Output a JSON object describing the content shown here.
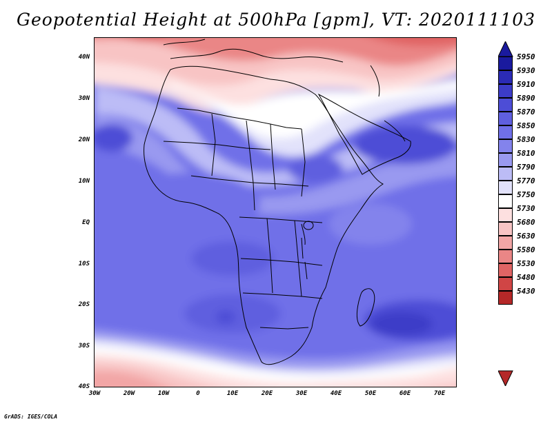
{
  "title": "Geopotential Height at 500hPa [gpm], VT: 2020111103",
  "credit": "GrADS: IGES/COLA",
  "map": {
    "variable": "Geopotential Height",
    "level": "500hPa",
    "units": "gpm",
    "valid_time": "2020111103",
    "lat_labels": [
      "40N",
      "30N",
      "20N",
      "10N",
      "EQ",
      "10S",
      "20S",
      "30S",
      "40S"
    ],
    "lon_labels": [
      "30W",
      "20W",
      "10W",
      "0",
      "10E",
      "20E",
      "30E",
      "40E",
      "50E",
      "60E",
      "70E"
    ]
  },
  "colorbar": {
    "levels": [
      5950,
      5930,
      5910,
      5890,
      5870,
      5850,
      5830,
      5810,
      5790,
      5770,
      5750,
      5730,
      5680,
      5630,
      5580,
      5530,
      5480,
      5430
    ],
    "colors": [
      "#1a1a9e",
      "#2b2bb5",
      "#3c3cc8",
      "#4d4dd6",
      "#5f5fdf",
      "#7070e8",
      "#8383ec",
      "#9999f0",
      "#bcbcf6",
      "#e2e2fb",
      "#ffffff",
      "#fde0e0",
      "#f8c4c4",
      "#f2a6a6",
      "#ea8686",
      "#e06464",
      "#d04545",
      "#b52828"
    ]
  },
  "colors": {
    "background": "#ffffff",
    "ocean_default": "#7070e8",
    "coastline": "#000000"
  }
}
